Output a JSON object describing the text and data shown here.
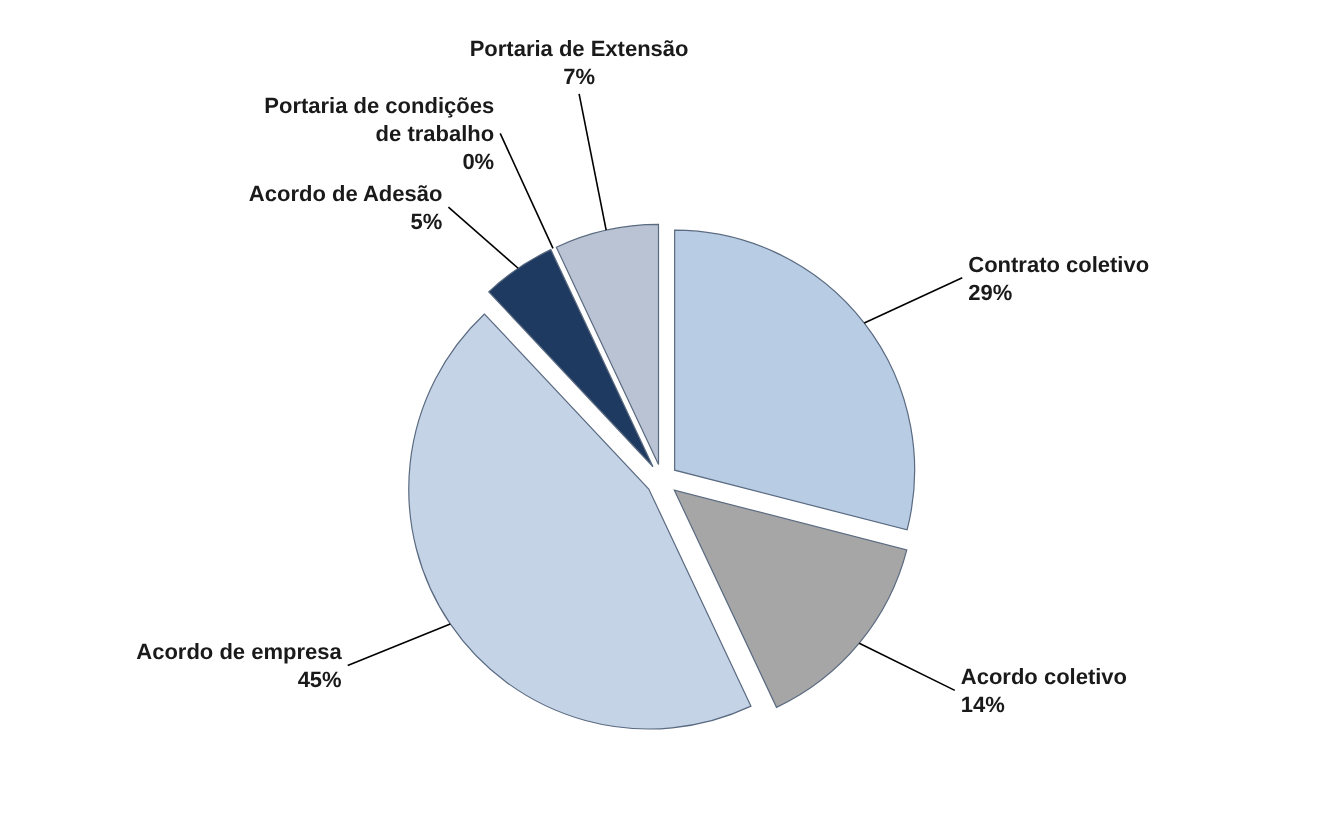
{
  "chart_data": {
    "type": "pie",
    "categories": [
      "Contrato coletivo",
      "Acordo coletivo",
      "Acordo de empresa",
      "Acordo de Adesão",
      "Portaria de condições de trabalho",
      "Portaria de Extensão"
    ],
    "values": [
      29,
      14,
      45,
      5,
      0,
      7
    ],
    "value_labels": [
      "29%",
      "14%",
      "45%",
      "5%",
      "0%",
      "7%"
    ],
    "colors": [
      "#b8cce4",
      "#a6a6a6",
      "#c5d3e6",
      "#1f3a60",
      "#1f5f5f",
      "#b9c3d3"
    ]
  }
}
